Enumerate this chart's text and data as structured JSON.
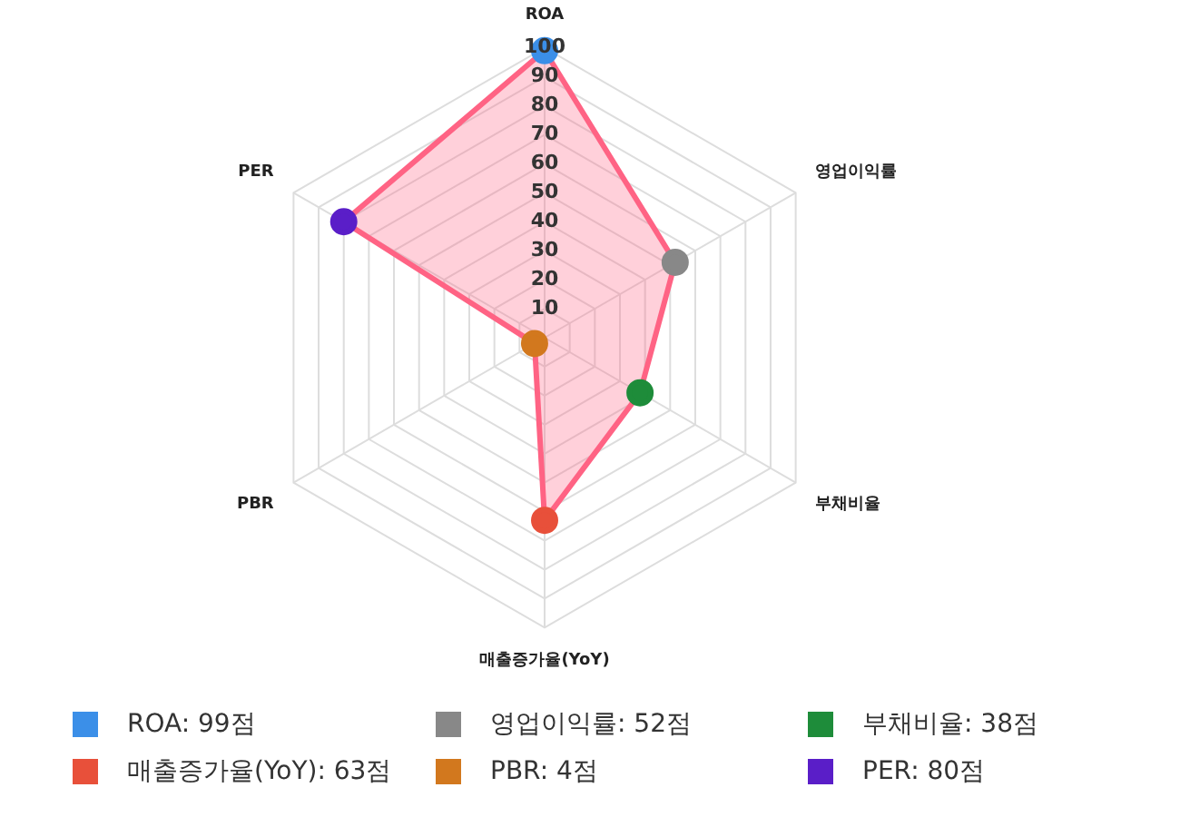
{
  "chart_data": {
    "type": "radar",
    "categories": [
      "ROA",
      "영업이익률",
      "부채비율",
      "매출증가율(YoY)",
      "PBR",
      "PER"
    ],
    "series": [
      {
        "color": "#ff6384",
        "values": [
          99,
          52,
          38,
          63,
          4,
          80
        ]
      }
    ],
    "colors": [
      "#3b8fe8",
      "#888888",
      "#1e8c3a",
      "#e8503a",
      "#d2781e",
      "#5a1ec8"
    ],
    "value_labels": [
      "ROA: 99점",
      "영업이익률: 52점",
      "부채비율: 38점",
      "매출증가율(YoY): 63점",
      "PBR: 4점",
      "PER: 80점"
    ],
    "ylim": [
      0,
      100
    ],
    "yticks": [
      10,
      20,
      30,
      40,
      50,
      60,
      70,
      80,
      90,
      100
    ],
    "grid": true,
    "marker": "circle"
  }
}
